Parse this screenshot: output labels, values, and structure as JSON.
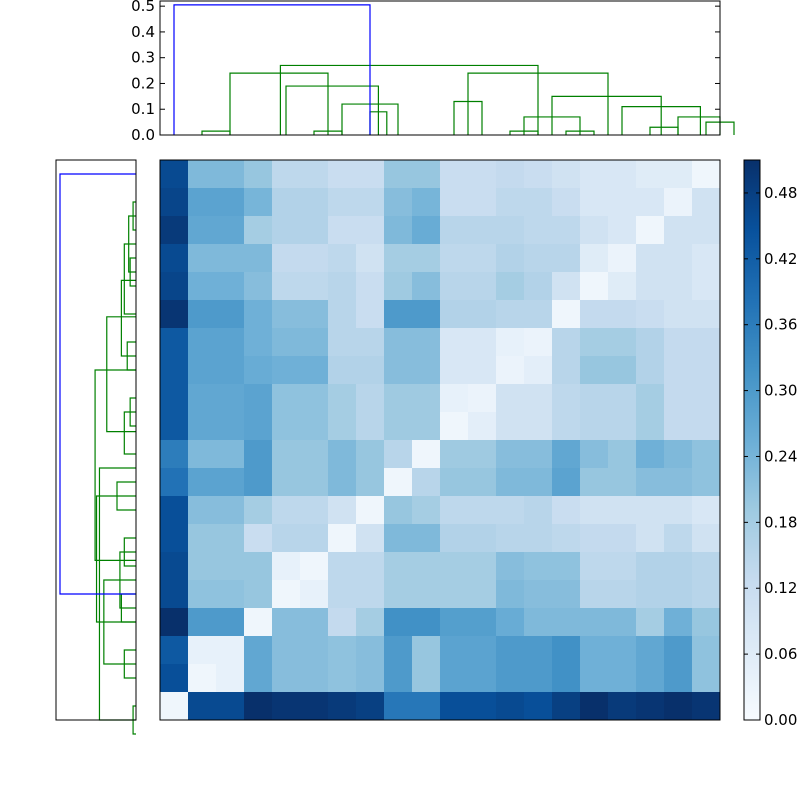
{
  "chart_data": [
    {
      "type": "dendrogram",
      "orientation": "top",
      "yticks": [
        "0.0",
        "0.1",
        "0.2",
        "0.3",
        "0.4",
        "0.5"
      ],
      "ylim": [
        0,
        0.52
      ],
      "leaf_count": 20,
      "colors": {
        "cluster": "#008000",
        "root": "#0000ff"
      },
      "links": [
        {
          "a": 1,
          "b": 2,
          "h": 0.015,
          "c": "cluster"
        },
        {
          "a": 5,
          "b": 6,
          "h": 0.015,
          "c": "cluster"
        },
        {
          "a": 6,
          "b": 8,
          "h": 0.12,
          "c": "cluster"
        },
        {
          "a": 7,
          "b": 7.6,
          "h": 0.09,
          "c": "cluster"
        },
        {
          "a": 4,
          "b": 7.3,
          "h": 0.19,
          "c": "cluster"
        },
        {
          "a": 2,
          "b": 5.5,
          "h": 0.24,
          "c": "cluster"
        },
        {
          "a": 10,
          "b": 11,
          "h": 0.13,
          "c": "cluster"
        },
        {
          "a": 12,
          "b": 13,
          "h": 0.015,
          "c": "cluster"
        },
        {
          "a": 14,
          "b": 15,
          "h": 0.015,
          "c": "cluster"
        },
        {
          "a": 12.5,
          "b": 14.5,
          "h": 0.07,
          "c": "cluster"
        },
        {
          "a": 17,
          "b": 18,
          "h": 0.03,
          "c": "cluster"
        },
        {
          "a": 19,
          "b": 20,
          "h": 0.05,
          "c": "cluster"
        },
        {
          "a": 18,
          "b": 19.5,
          "h": 0.07,
          "c": "cluster"
        },
        {
          "a": 16,
          "b": 18.8,
          "h": 0.11,
          "c": "cluster"
        },
        {
          "a": 13.5,
          "b": 17.4,
          "h": 0.15,
          "c": "cluster"
        },
        {
          "a": 10.5,
          "b": 15.5,
          "h": 0.24,
          "c": "cluster"
        },
        {
          "a": 3.8,
          "b": 13.0,
          "h": 0.27,
          "c": "cluster"
        },
        {
          "a": 0,
          "b": 7.0,
          "h": 0.505,
          "c": "root"
        }
      ]
    },
    {
      "type": "dendrogram",
      "orientation": "left",
      "leaf_count": 20,
      "xlim": [
        0,
        0.52
      ],
      "colors": {
        "cluster": "#008000",
        "root": "#0000ff"
      },
      "links": [
        {
          "a": 1,
          "b": 2,
          "h": 0.02,
          "c": "cluster"
        },
        {
          "a": 3,
          "b": 4,
          "h": 0.04,
          "c": "cluster"
        },
        {
          "a": 1.5,
          "b": 3.5,
          "h": 0.05,
          "c": "cluster"
        },
        {
          "a": 5,
          "b": 2.5,
          "h": 0.08,
          "c": "cluster"
        },
        {
          "a": 6,
          "b": 7,
          "h": 0.06,
          "c": "cluster"
        },
        {
          "a": 3.8,
          "b": 6.5,
          "h": 0.1,
          "c": "cluster"
        },
        {
          "a": 8,
          "b": 9,
          "h": 0.04,
          "c": "cluster"
        },
        {
          "a": 10,
          "b": 8.5,
          "h": 0.08,
          "c": "cluster"
        },
        {
          "a": 5.1,
          "b": 9.2,
          "h": 0.2,
          "c": "cluster"
        },
        {
          "a": 11,
          "b": 12,
          "h": 0.13,
          "c": "cluster"
        },
        {
          "a": 13,
          "b": 14,
          "h": 0.08,
          "c": "cluster"
        },
        {
          "a": 15,
          "b": 16,
          "h": 0.1,
          "c": "cluster"
        },
        {
          "a": 13.5,
          "b": 15.5,
          "h": 0.11,
          "c": "cluster"
        },
        {
          "a": 17,
          "b": 18,
          "h": 0.08,
          "c": "cluster"
        },
        {
          "a": 14.5,
          "b": 17.5,
          "h": 0.22,
          "c": "cluster"
        },
        {
          "a": 11.5,
          "b": 16.0,
          "h": 0.27,
          "c": "cluster"
        },
        {
          "a": 7.0,
          "b": 13.8,
          "h": 0.28,
          "c": "cluster"
        },
        {
          "a": 19,
          "b": 20,
          "h": 0.02,
          "c": "cluster"
        },
        {
          "a": 10.5,
          "b": 19.5,
          "h": 0.25,
          "c": "cluster"
        },
        {
          "a": 15.0,
          "b": 0,
          "h": 0.52,
          "c": "root"
        }
      ]
    },
    {
      "type": "heatmap",
      "rows": 20,
      "cols": 20,
      "zlim": [
        0,
        0.51
      ],
      "values": [
        [
          0.46,
          0.23,
          0.23,
          0.2,
          0.14,
          0.14,
          0.12,
          0.12,
          0.2,
          0.2,
          0.12,
          0.12,
          0.13,
          0.12,
          0.1,
          0.08,
          0.08,
          0.06,
          0.06,
          0.02
        ],
        [
          0.47,
          0.28,
          0.28,
          0.24,
          0.16,
          0.16,
          0.14,
          0.14,
          0.22,
          0.24,
          0.12,
          0.12,
          0.14,
          0.14,
          0.12,
          0.08,
          0.08,
          0.08,
          0.03,
          0.1
        ],
        [
          0.49,
          0.27,
          0.27,
          0.18,
          0.16,
          0.16,
          0.12,
          0.12,
          0.23,
          0.26,
          0.15,
          0.15,
          0.15,
          0.14,
          0.14,
          0.1,
          0.08,
          0.02,
          0.1,
          0.1
        ],
        [
          0.46,
          0.23,
          0.23,
          0.23,
          0.13,
          0.13,
          0.14,
          0.1,
          0.18,
          0.18,
          0.14,
          0.14,
          0.16,
          0.15,
          0.15,
          0.06,
          0.03,
          0.1,
          0.1,
          0.08
        ],
        [
          0.47,
          0.25,
          0.25,
          0.22,
          0.14,
          0.14,
          0.15,
          0.12,
          0.19,
          0.22,
          0.15,
          0.15,
          0.18,
          0.16,
          0.1,
          0.02,
          0.06,
          0.1,
          0.1,
          0.08
        ],
        [
          0.5,
          0.3,
          0.3,
          0.25,
          0.22,
          0.22,
          0.15,
          0.12,
          0.3,
          0.3,
          0.16,
          0.16,
          0.15,
          0.15,
          0.02,
          0.13,
          0.13,
          0.12,
          0.1,
          0.1
        ],
        [
          0.43,
          0.28,
          0.28,
          0.25,
          0.23,
          0.23,
          0.15,
          0.15,
          0.22,
          0.22,
          0.08,
          0.08,
          0.04,
          0.03,
          0.15,
          0.18,
          0.18,
          0.16,
          0.13,
          0.13
        ],
        [
          0.43,
          0.28,
          0.28,
          0.26,
          0.25,
          0.25,
          0.16,
          0.16,
          0.22,
          0.22,
          0.08,
          0.08,
          0.03,
          0.05,
          0.15,
          0.2,
          0.2,
          0.16,
          0.13,
          0.13
        ],
        [
          0.43,
          0.27,
          0.27,
          0.28,
          0.21,
          0.21,
          0.18,
          0.15,
          0.19,
          0.19,
          0.04,
          0.03,
          0.1,
          0.1,
          0.14,
          0.15,
          0.15,
          0.18,
          0.13,
          0.13
        ],
        [
          0.43,
          0.27,
          0.27,
          0.28,
          0.21,
          0.21,
          0.18,
          0.15,
          0.19,
          0.19,
          0.02,
          0.05,
          0.1,
          0.1,
          0.14,
          0.15,
          0.15,
          0.18,
          0.13,
          0.13
        ],
        [
          0.36,
          0.23,
          0.23,
          0.3,
          0.2,
          0.2,
          0.23,
          0.2,
          0.15,
          0.02,
          0.19,
          0.19,
          0.22,
          0.22,
          0.27,
          0.22,
          0.2,
          0.25,
          0.23,
          0.21
        ],
        [
          0.38,
          0.28,
          0.28,
          0.3,
          0.2,
          0.2,
          0.23,
          0.2,
          0.02,
          0.15,
          0.2,
          0.2,
          0.23,
          0.23,
          0.28,
          0.2,
          0.2,
          0.22,
          0.22,
          0.21
        ],
        [
          0.45,
          0.22,
          0.22,
          0.18,
          0.14,
          0.14,
          0.1,
          0.02,
          0.2,
          0.18,
          0.14,
          0.14,
          0.14,
          0.15,
          0.12,
          0.1,
          0.1,
          0.1,
          0.1,
          0.08
        ],
        [
          0.45,
          0.2,
          0.2,
          0.12,
          0.15,
          0.15,
          0.02,
          0.1,
          0.23,
          0.23,
          0.16,
          0.16,
          0.15,
          0.15,
          0.14,
          0.13,
          0.13,
          0.1,
          0.14,
          0.1
        ],
        [
          0.46,
          0.2,
          0.2,
          0.2,
          0.04,
          0.02,
          0.14,
          0.14,
          0.18,
          0.18,
          0.18,
          0.18,
          0.22,
          0.21,
          0.21,
          0.14,
          0.14,
          0.16,
          0.16,
          0.15
        ],
        [
          0.46,
          0.21,
          0.21,
          0.2,
          0.02,
          0.04,
          0.14,
          0.14,
          0.18,
          0.18,
          0.18,
          0.18,
          0.23,
          0.22,
          0.22,
          0.15,
          0.15,
          0.16,
          0.16,
          0.15
        ],
        [
          0.51,
          0.3,
          0.3,
          0.02,
          0.22,
          0.22,
          0.13,
          0.18,
          0.32,
          0.32,
          0.29,
          0.29,
          0.26,
          0.23,
          0.23,
          0.23,
          0.23,
          0.18,
          0.25,
          0.2
        ],
        [
          0.43,
          0.04,
          0.04,
          0.27,
          0.22,
          0.22,
          0.21,
          0.22,
          0.3,
          0.2,
          0.28,
          0.28,
          0.3,
          0.3,
          0.32,
          0.25,
          0.25,
          0.27,
          0.3,
          0.21
        ],
        [
          0.45,
          0.02,
          0.04,
          0.27,
          0.22,
          0.22,
          0.21,
          0.22,
          0.3,
          0.2,
          0.28,
          0.28,
          0.3,
          0.3,
          0.32,
          0.25,
          0.25,
          0.27,
          0.3,
          0.21
        ],
        [
          0.02,
          0.46,
          0.46,
          0.51,
          0.5,
          0.5,
          0.49,
          0.48,
          0.37,
          0.37,
          0.45,
          0.45,
          0.46,
          0.45,
          0.48,
          0.51,
          0.49,
          0.5,
          0.51,
          0.5
        ]
      ]
    },
    {
      "type": "colorbar",
      "ticks": [
        "0.00",
        "0.06",
        "0.12",
        "0.18",
        "0.24",
        "0.30",
        "0.36",
        "0.42",
        "0.48"
      ],
      "zlim": [
        0,
        0.51
      ],
      "colormap": [
        "#f7fbff",
        "#deebf7",
        "#c6dbef",
        "#9ecae1",
        "#6baed6",
        "#4292c6",
        "#2171b5",
        "#08519c",
        "#08306b"
      ]
    }
  ]
}
